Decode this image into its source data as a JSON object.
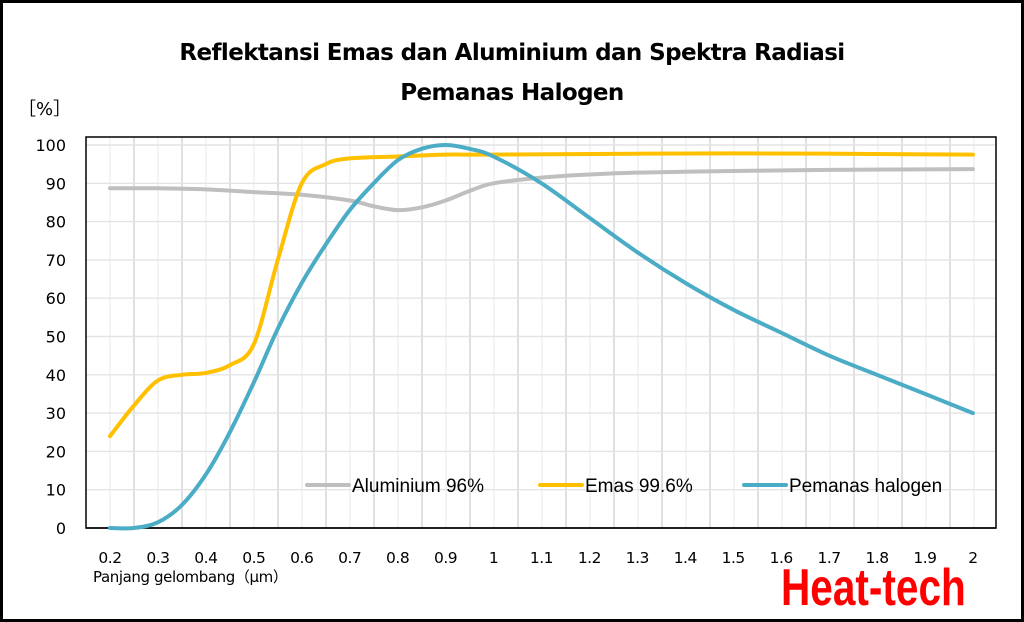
{
  "chart_data": {
    "type": "line",
    "title": "Reflektansi Emas dan Aluminium dan Spektra Radiasi Pemanas Halogen",
    "title_lines": [
      "Reflektansi Emas dan Aluminium dan Spektra Radiasi",
      "Pemanas Halogen"
    ],
    "ylabel": "［%］",
    "xlabel": "Panjang gelombang（μm）",
    "ylim": [
      0,
      100
    ],
    "xlim": [
      0.2,
      2.0
    ],
    "yticks": [
      0,
      10,
      20,
      30,
      40,
      50,
      60,
      70,
      80,
      90,
      100
    ],
    "xticks": [
      "0.2",
      "0.3",
      "0.4",
      "0.5",
      "0.6",
      "0.7",
      "0.8",
      "0.9",
      "1",
      "1.1",
      "1.2",
      "1.3",
      "1.4",
      "1.5",
      "1.6",
      "1.7",
      "1.8",
      "1.9",
      "2"
    ],
    "grid": true,
    "legend_position": "bottom-right inside plot",
    "series": [
      {
        "name": "Aluminium  96%",
        "color": "#BFBFBF",
        "points": [
          [
            0.2,
            88.7
          ],
          [
            0.3,
            88.7
          ],
          [
            0.4,
            88.4
          ],
          [
            0.5,
            87.7
          ],
          [
            0.6,
            87.0
          ],
          [
            0.7,
            85.5
          ],
          [
            0.75,
            84.0
          ],
          [
            0.8,
            83.0
          ],
          [
            0.85,
            83.7
          ],
          [
            0.9,
            85.5
          ],
          [
            0.95,
            88.0
          ],
          [
            1.0,
            90.0
          ],
          [
            1.1,
            91.5
          ],
          [
            1.2,
            92.3
          ],
          [
            1.3,
            92.8
          ],
          [
            1.5,
            93.2
          ],
          [
            1.7,
            93.5
          ],
          [
            2.0,
            93.7
          ]
        ]
      },
      {
        "name": "Emas 99.6%",
        "color": "#FFC000",
        "points": [
          [
            0.2,
            24
          ],
          [
            0.25,
            32
          ],
          [
            0.3,
            38.5
          ],
          [
            0.35,
            40
          ],
          [
            0.4,
            40.5
          ],
          [
            0.45,
            42.5
          ],
          [
            0.5,
            48
          ],
          [
            0.55,
            70
          ],
          [
            0.6,
            90
          ],
          [
            0.65,
            95
          ],
          [
            0.7,
            96.5
          ],
          [
            0.8,
            97
          ],
          [
            0.9,
            97.5
          ],
          [
            1.0,
            97.5
          ],
          [
            1.5,
            97.8
          ],
          [
            2.0,
            97.5
          ]
        ]
      },
      {
        "name": "Pemanas halogen",
        "color": "#4BACC6",
        "points": [
          [
            0.2,
            0
          ],
          [
            0.25,
            0
          ],
          [
            0.3,
            1.5
          ],
          [
            0.35,
            6
          ],
          [
            0.4,
            14
          ],
          [
            0.45,
            25
          ],
          [
            0.5,
            38
          ],
          [
            0.55,
            52
          ],
          [
            0.6,
            64
          ],
          [
            0.65,
            74
          ],
          [
            0.7,
            83
          ],
          [
            0.75,
            90
          ],
          [
            0.8,
            96
          ],
          [
            0.85,
            99
          ],
          [
            0.9,
            100
          ],
          [
            0.95,
            99
          ],
          [
            1.0,
            97
          ],
          [
            1.1,
            90
          ],
          [
            1.2,
            81
          ],
          [
            1.3,
            72
          ],
          [
            1.4,
            64
          ],
          [
            1.5,
            57
          ],
          [
            1.6,
            51
          ],
          [
            1.7,
            45
          ],
          [
            1.8,
            40
          ],
          [
            1.9,
            35
          ],
          [
            2.0,
            30
          ]
        ]
      }
    ]
  },
  "watermark": "Heat-tech"
}
